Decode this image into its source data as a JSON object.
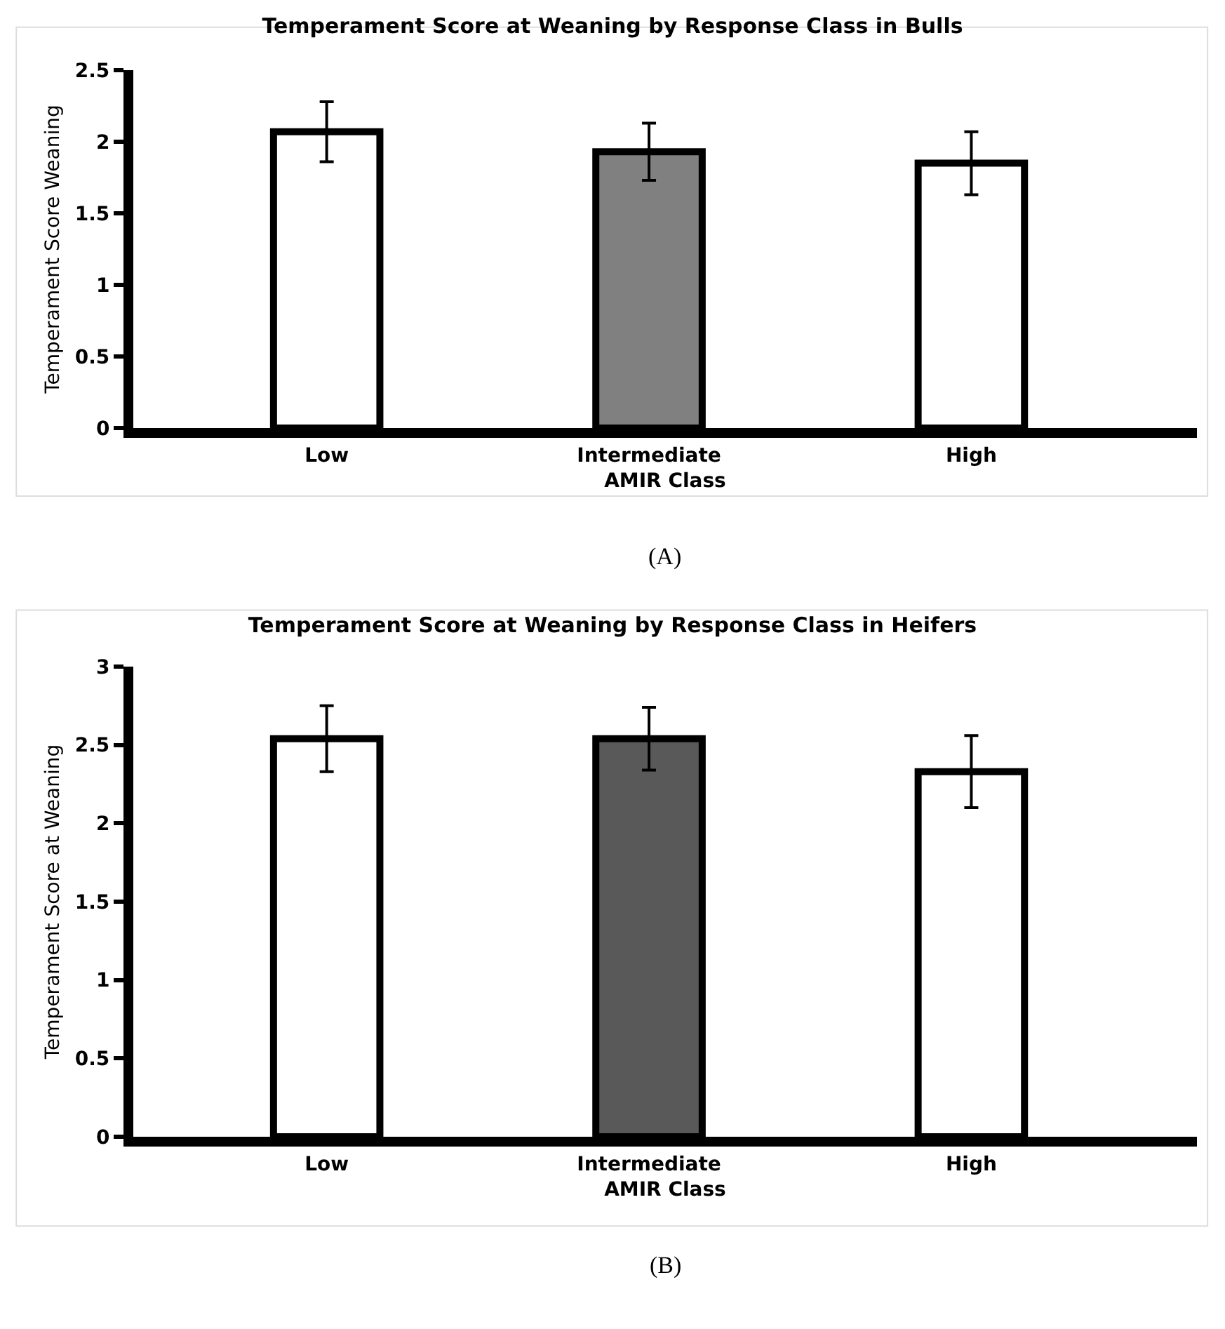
{
  "chart_data": [
    {
      "type": "bar",
      "title": "Temperament Score at Weaning by Response Class in Bulls",
      "xlabel": "AMIR Class",
      "ylabel": "Temperament Score Weaning",
      "categories": [
        "Low",
        "Intermediate",
        "High"
      ],
      "values": [
        2.07,
        1.93,
        1.85
      ],
      "errors": [
        0.21,
        0.2,
        0.22
      ],
      "colors": [
        "#ffffff",
        "#808080",
        "#ffffff"
      ],
      "ylim": [
        0,
        2.5
      ],
      "yticks": [
        0,
        0.5,
        1,
        1.5,
        2,
        2.5
      ],
      "grid": false,
      "annotations": [
        "(A)"
      ]
    },
    {
      "type": "bar",
      "title": "Temperament Score at Weaning by Response Class in Heifers",
      "xlabel": "AMIR Class",
      "ylabel": "Temperament Score at Weaning",
      "categories": [
        "Low",
        "Intermediate",
        "High"
      ],
      "values": [
        2.54,
        2.54,
        2.33
      ],
      "errors": [
        0.21,
        0.2,
        0.23
      ],
      "colors": [
        "#ffffff",
        "#595959",
        "#ffffff"
      ],
      "ylim": [
        0,
        3
      ],
      "yticks": [
        0,
        0.5,
        1,
        1.5,
        2,
        2.5,
        3
      ],
      "grid": false,
      "annotations": [
        "(B)"
      ]
    }
  ]
}
